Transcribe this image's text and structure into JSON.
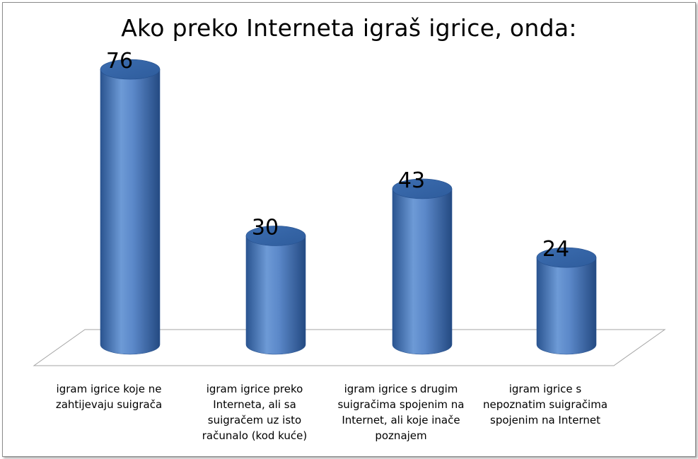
{
  "chart_data": {
    "type": "bar",
    "title": "Ako preko Interneta igraš igrice, onda:",
    "categories": [
      "igram igrice koje ne zahtijevaju suigrača",
      "igram igrice preko Interneta, ali sa suigračem uz isto računalo (kod kuće)",
      "igram igrice s drugim suigračima spojenim na Internet, ali koje inače poznajem",
      "igram igrice s nepoznatim suigračima spojenim na Internet"
    ],
    "values": [
      76,
      30,
      43,
      24
    ],
    "data_labels": [
      "76",
      "30",
      "43",
      "24"
    ],
    "ylim": [
      0,
      85
    ],
    "grid": false,
    "legend": "none",
    "style": "3d-cylinder",
    "colors": {
      "bar": "#4f81bd",
      "bar_dark": "#2a5490",
      "bar_light": "#8fb4e6"
    }
  }
}
